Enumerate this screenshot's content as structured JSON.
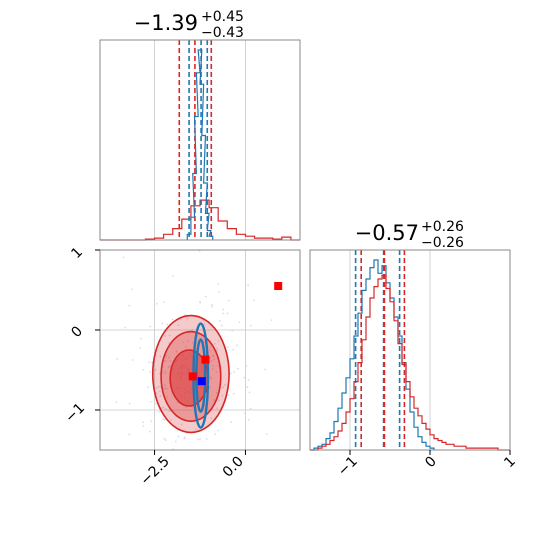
{
  "colors": {
    "red": "#d62728",
    "blue": "#1f77b4",
    "grid": "#c8c8c8",
    "frame": "#8a8a8a",
    "marker_red": "#ff0000",
    "marker_blue": "#0000ff"
  },
  "chart_data": {
    "type": "corner",
    "panels": [
      {
        "id": "hist-param1",
        "type": "histogram",
        "title": {
          "median": "−1.39",
          "plus": "+0.45",
          "minus": "−0.43"
        },
        "xlim": [
          -4.0,
          1.5
        ],
        "grid_x": [
          -2.5,
          0.0
        ],
        "series": [
          {
            "color": "red",
            "quantiles": [
              -1.82,
              -1.39,
              -0.94
            ],
            "bins": [
              [
                -4.0,
                0
              ],
              [
                -3.75,
                0
              ],
              [
                -3.5,
                0
              ],
              [
                -3.25,
                0
              ],
              [
                -3.0,
                0
              ],
              [
                -2.75,
                0.005
              ],
              [
                -2.5,
                0.01
              ],
              [
                -2.25,
                0.03
              ],
              [
                -2.0,
                0.06
              ],
              [
                -1.75,
                0.11
              ],
              [
                -1.5,
                0.18
              ],
              [
                -1.25,
                0.21
              ],
              [
                -1.0,
                0.17
              ],
              [
                -0.75,
                0.1
              ],
              [
                -0.5,
                0.06
              ],
              [
                -0.25,
                0.03
              ],
              [
                0.0,
                0.02
              ],
              [
                0.25,
                0.01
              ],
              [
                0.5,
                0.01
              ],
              [
                0.75,
                0.005
              ],
              [
                1.0,
                0.015
              ],
              [
                1.25,
                0
              ]
            ]
          },
          {
            "color": "blue",
            "quantiles": [
              -1.55,
              -1.22,
              -1.05
            ],
            "bins": [
              [
                -1.6,
                0.03
              ],
              [
                -1.5,
                0.12
              ],
              [
                -1.45,
                0.35
              ],
              [
                -1.4,
                0.65
              ],
              [
                -1.35,
                0.88
              ],
              [
                -1.3,
                1.0
              ],
              [
                -1.25,
                0.82
              ],
              [
                -1.2,
                0.55
              ],
              [
                -1.15,
                0.3
              ],
              [
                -1.1,
                0.14
              ],
              [
                -1.05,
                0.05
              ],
              [
                -1.0,
                0.02
              ]
            ]
          }
        ]
      },
      {
        "id": "hist-param2",
        "type": "histogram",
        "title": {
          "median": "−0.57",
          "plus": "+0.26",
          "minus": "−0.26"
        },
        "xlim": [
          -1.5,
          1.0
        ],
        "grid_x": [
          -1,
          0,
          1
        ],
        "xticks": [
          "−1",
          "0",
          "1"
        ],
        "series": [
          {
            "color": "blue",
            "quantiles": [
              -0.93,
              -0.58,
              -0.38
            ],
            "bins": [
              [
                -1.5,
                0
              ],
              [
                -1.45,
                0.01
              ],
              [
                -1.4,
                0.02
              ],
              [
                -1.35,
                0.03
              ],
              [
                -1.3,
                0.06
              ],
              [
                -1.25,
                0.09
              ],
              [
                -1.2,
                0.15
              ],
              [
                -1.15,
                0.22
              ],
              [
                -1.1,
                0.3
              ],
              [
                -1.05,
                0.38
              ],
              [
                -1.0,
                0.48
              ],
              [
                -0.95,
                0.6
              ],
              [
                -0.9,
                0.72
              ],
              [
                -0.85,
                0.84
              ],
              [
                -0.8,
                0.9
              ],
              [
                -0.75,
                0.96
              ],
              [
                -0.7,
                1.0
              ],
              [
                -0.65,
                0.93
              ],
              [
                -0.6,
                0.97
              ],
              [
                -0.55,
                0.88
              ],
              [
                -0.5,
                0.8
              ],
              [
                -0.45,
                0.7
              ],
              [
                -0.4,
                0.6
              ],
              [
                -0.35,
                0.46
              ],
              [
                -0.3,
                0.32
              ],
              [
                -0.25,
                0.2
              ],
              [
                -0.2,
                0.12
              ],
              [
                -0.15,
                0.07
              ],
              [
                -0.1,
                0.04
              ],
              [
                -0.05,
                0.02
              ],
              [
                0.0,
                0.01
              ]
            ]
          },
          {
            "color": "red",
            "quantiles": [
              -0.86,
              -0.57,
              -0.32
            ],
            "bins": [
              [
                -1.5,
                0
              ],
              [
                -1.45,
                0
              ],
              [
                -1.4,
                0.01
              ],
              [
                -1.35,
                0.02
              ],
              [
                -1.3,
                0.03
              ],
              [
                -1.25,
                0.05
              ],
              [
                -1.2,
                0.07
              ],
              [
                -1.15,
                0.1
              ],
              [
                -1.1,
                0.14
              ],
              [
                -1.05,
                0.2
              ],
              [
                -1.0,
                0.27
              ],
              [
                -0.95,
                0.36
              ],
              [
                -0.9,
                0.46
              ],
              [
                -0.85,
                0.58
              ],
              [
                -0.8,
                0.7
              ],
              [
                -0.75,
                0.8
              ],
              [
                -0.7,
                0.86
              ],
              [
                -0.65,
                0.9
              ],
              [
                -0.6,
                0.92
              ],
              [
                -0.55,
                0.85
              ],
              [
                -0.5,
                0.78
              ],
              [
                -0.45,
                0.68
              ],
              [
                -0.4,
                0.56
              ],
              [
                -0.35,
                0.45
              ],
              [
                -0.3,
                0.36
              ],
              [
                -0.25,
                0.28
              ],
              [
                -0.2,
                0.22
              ],
              [
                -0.15,
                0.18
              ],
              [
                -0.1,
                0.14
              ],
              [
                -0.05,
                0.11
              ],
              [
                0.0,
                0.08
              ],
              [
                0.05,
                0.06
              ],
              [
                0.1,
                0.05
              ],
              [
                0.15,
                0.04
              ],
              [
                0.2,
                0.03
              ],
              [
                0.25,
                0.03
              ],
              [
                0.3,
                0.02
              ],
              [
                0.35,
                0.02
              ],
              [
                0.4,
                0.02
              ],
              [
                0.45,
                0.01
              ],
              [
                0.5,
                0.01
              ],
              [
                0.55,
                0.01
              ],
              [
                0.6,
                0.01
              ],
              [
                0.65,
                0.01
              ],
              [
                0.7,
                0.01
              ],
              [
                0.75,
                0.01
              ],
              [
                0.8,
                0.01
              ],
              [
                0.85,
                0
              ],
              [
                0.9,
                0
              ],
              [
                0.95,
                0
              ]
            ]
          }
        ]
      },
      {
        "id": "scatter-2d",
        "type": "contour-scatter",
        "xlim": [
          -4.0,
          1.5
        ],
        "ylim": [
          -1.5,
          1.0
        ],
        "grid_x": [
          -2.5,
          0.0
        ],
        "grid_y": [
          -1,
          0
        ],
        "xticks": [
          "−2.5",
          "0.0"
        ],
        "yticks": [
          "−1",
          "0",
          "1"
        ],
        "red_contours": [
          {
            "level": "outer",
            "cx": -1.5,
            "cy": -0.55,
            "rx": 1.05,
            "ry": 0.73
          },
          {
            "level": "middle",
            "cx": -1.5,
            "cy": -0.58,
            "rx": 0.82,
            "ry": 0.56
          },
          {
            "level": "inner",
            "cx": -1.55,
            "cy": -0.6,
            "rx": 0.52,
            "ry": 0.35
          }
        ],
        "blue_contours": [
          {
            "level": "outer",
            "cx": -1.23,
            "cy": -0.57,
            "rx": 0.2,
            "ry": 0.65
          },
          {
            "level": "inner",
            "cx": -1.23,
            "cy": -0.57,
            "rx": 0.12,
            "ry": 0.45
          }
        ],
        "markers": [
          {
            "x": 0.9,
            "y": 0.55,
            "color": "marker_red"
          },
          {
            "x": -1.1,
            "y": -0.37,
            "color": "marker_red"
          },
          {
            "x": -1.45,
            "y": -0.58,
            "color": "marker_red"
          },
          {
            "x": -1.2,
            "y": -0.64,
            "color": "marker_blue"
          }
        ]
      }
    ]
  }
}
